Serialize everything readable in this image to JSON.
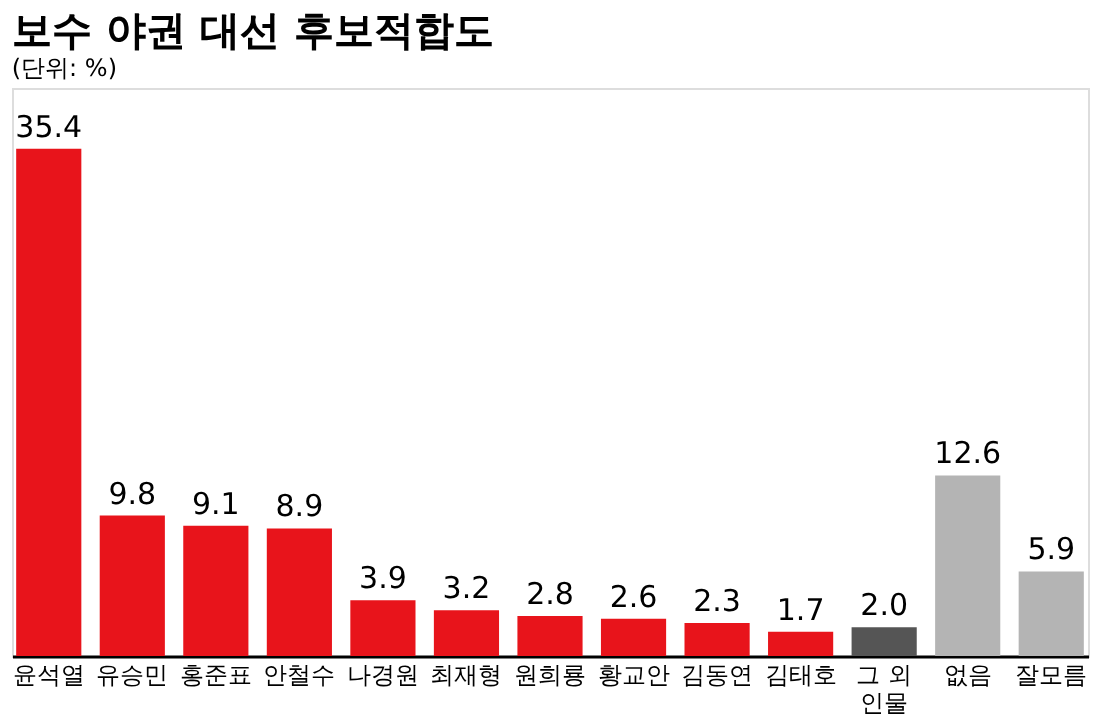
{
  "chart_data": {
    "type": "bar",
    "title": "보수 야권 대선 후보적합도",
    "subtitle": "(단위: %)",
    "categories": [
      "윤석열",
      "유승민",
      "홍준표",
      "안철수",
      "나경원",
      "최재형",
      "원희룡",
      "황교안",
      "김동연",
      "김태호",
      "그 외\n인물",
      "없음",
      "잘모름"
    ],
    "values": [
      35.4,
      9.8,
      9.1,
      8.9,
      3.9,
      3.2,
      2.8,
      2.6,
      2.3,
      1.7,
      2.0,
      12.6,
      5.9
    ],
    "colors": [
      "#e8141b",
      "#e8141b",
      "#e8141b",
      "#e8141b",
      "#e8141b",
      "#e8141b",
      "#e8141b",
      "#e8141b",
      "#e8141b",
      "#e8141b",
      "#555555",
      "#b4b4b4",
      "#b4b4b4"
    ],
    "value_labels": [
      "35.4",
      "9.8",
      "9.1",
      "8.9",
      "3.9",
      "3.2",
      "2.8",
      "2.6",
      "2.3",
      "1.7",
      "2.0",
      "12.6",
      "5.9"
    ]
  }
}
